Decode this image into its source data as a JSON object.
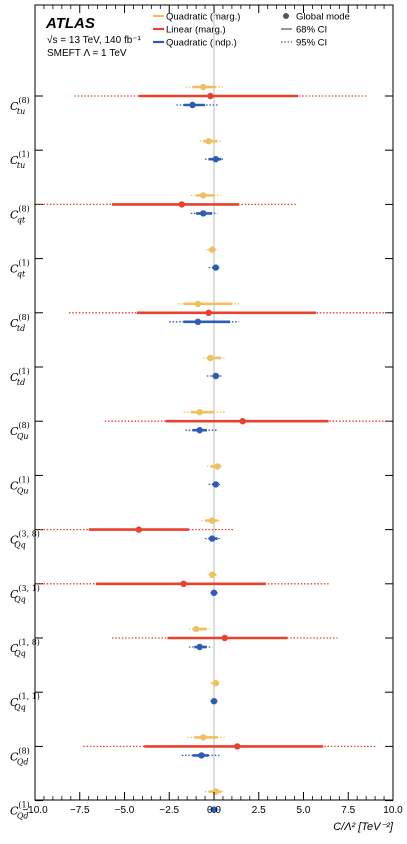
{
  "chart_data": {
    "type": "scatter",
    "annotation": {
      "experiment": "ATLAS",
      "energy_line": "√s = 13 TeV, 140 fb⁻¹",
      "model_line": "SMEFT Λ = 1 TeV"
    },
    "xlabel": "C/Λ² [TeV⁻²]",
    "xlim": [
      -10,
      10
    ],
    "xticks": [
      "−10.0",
      "−7.5",
      "−5.0",
      "−2.5",
      "0.0",
      "2.5",
      "5.0",
      "7.5",
      "10.0"
    ],
    "legend": [
      {
        "label": "Quadratic (marg.)",
        "color": "#f0c060",
        "kind": "line"
      },
      {
        "label": "Linear (marg.)",
        "color": "#e8412e",
        "kind": "line"
      },
      {
        "label": "Quadratic (indp.)",
        "color": "#2c5cb4",
        "kind": "line"
      },
      {
        "label": "Global mode",
        "color": "#555555",
        "kind": "dot"
      },
      {
        "label": "68% CI",
        "color": "#333333",
        "kind": "solid"
      },
      {
        "label": "95% CI",
        "color": "#333333",
        "kind": "dotted"
      }
    ],
    "categories": [
      {
        "base": "C",
        "sup": "(8)",
        "sub": "tu"
      },
      {
        "base": "C",
        "sup": "(1)",
        "sub": "tu"
      },
      {
        "base": "C",
        "sup": "(8)",
        "sub": "qt"
      },
      {
        "base": "C",
        "sup": "(1)",
        "sub": "qt"
      },
      {
        "base": "C",
        "sup": "(8)",
        "sub": "td"
      },
      {
        "base": "C",
        "sup": "(1)",
        "sub": "td"
      },
      {
        "base": "C",
        "sup": "(8)",
        "sub": "Qu"
      },
      {
        "base": "C",
        "sup": "(1)",
        "sub": "Qu"
      },
      {
        "base": "C",
        "sup": "(3, 8)",
        "sub": "Qq"
      },
      {
        "base": "C",
        "sup": "(3, 1)",
        "sub": "Qq"
      },
      {
        "base": "C",
        "sup": "(1, 8)",
        "sub": "Qq"
      },
      {
        "base": "C",
        "sup": "(1, 1)",
        "sub": "Qq"
      },
      {
        "base": "C",
        "sup": "(8)",
        "sub": "Qd"
      },
      {
        "base": "C",
        "sup": "(1)",
        "sub": "Qd"
      }
    ],
    "series": [
      {
        "name": "Quadratic (marg.)",
        "color": "#f0c060",
        "points": [
          {
            "mode": -0.6,
            "ci68": [
              -1.2,
              0.1
            ],
            "ci95": [
              -1.6,
              0.5
            ]
          },
          {
            "mode": -0.3,
            "ci68": [
              -0.6,
              0.2
            ],
            "ci95": [
              -0.8,
              0.4
            ]
          },
          {
            "mode": -0.6,
            "ci68": [
              -1.0,
              0.0
            ],
            "ci95": [
              -1.3,
              0.4
            ]
          },
          {
            "mode": -0.1,
            "ci68": [
              -0.3,
              0.1
            ],
            "ci95": [
              -0.4,
              0.2
            ]
          },
          {
            "mode": -0.9,
            "ci68": [
              -1.7,
              1.0
            ],
            "ci95": [
              -2.0,
              1.5
            ]
          },
          {
            "mode": -0.2,
            "ci68": [
              -0.4,
              0.4
            ],
            "ci95": [
              -0.6,
              0.6
            ]
          },
          {
            "mode": -0.8,
            "ci68": [
              -1.3,
              0.0
            ],
            "ci95": [
              -1.7,
              0.6
            ]
          },
          {
            "mode": 0.2,
            "ci68": [
              -0.2,
              0.3
            ],
            "ci95": [
              -0.4,
              0.5
            ]
          },
          {
            "mode": -0.1,
            "ci68": [
              -0.5,
              0.2
            ],
            "ci95": [
              -0.7,
              0.4
            ]
          },
          {
            "mode": -0.1,
            "ci68": [
              -0.2,
              0.1
            ],
            "ci95": [
              -0.3,
              0.2
            ]
          },
          {
            "mode": -1.0,
            "ci68": [
              -1.2,
              -0.4
            ],
            "ci95": [
              -1.4,
              -0.2
            ]
          },
          {
            "mode": 0.1,
            "ci68": [
              -0.1,
              0.2
            ],
            "ci95": [
              -0.2,
              0.3
            ]
          },
          {
            "mode": -0.6,
            "ci68": [
              -1.1,
              0.2
            ],
            "ci95": [
              -1.5,
              0.6
            ]
          },
          {
            "mode": 0.1,
            "ci68": [
              -0.3,
              0.4
            ],
            "ci95": [
              -0.5,
              0.6
            ]
          }
        ]
      },
      {
        "name": "Linear (marg.)",
        "color": "#e8412e",
        "points": [
          {
            "mode": -0.2,
            "ci68": [
              -4.2,
              4.7
            ],
            "ci95": [
              -7.8,
              8.6
            ]
          },
          null,
          {
            "mode": -1.8,
            "ci68": [
              -5.7,
              1.4
            ],
            "ci95": [
              -9.9,
              4.6
            ]
          },
          null,
          {
            "mode": -0.3,
            "ci68": [
              -4.3,
              5.7
            ],
            "ci95": [
              -8.1,
              9.7
            ]
          },
          null,
          {
            "mode": 1.6,
            "ci68": [
              -2.7,
              6.4
            ],
            "ci95": [
              -6.1,
              9.9
            ]
          },
          null,
          {
            "mode": -4.2,
            "ci68": [
              -7.0,
              -1.4
            ],
            "ci95": [
              -9.9,
              1.1
            ]
          },
          {
            "mode": -1.7,
            "ci68": [
              -6.6,
              2.9
            ],
            "ci95": [
              -9.9,
              6.4
            ]
          },
          {
            "mode": 0.6,
            "ci68": [
              -2.6,
              4.1
            ],
            "ci95": [
              -5.7,
              6.9
            ]
          },
          null,
          {
            "mode": 1.3,
            "ci68": [
              -3.9,
              6.1
            ],
            "ci95": [
              -7.3,
              9.1
            ]
          },
          null
        ]
      },
      {
        "name": "Quadratic (indp.)",
        "color": "#2c5cb4",
        "points": [
          {
            "mode": -1.2,
            "ci68": [
              -1.7,
              -0.5
            ],
            "ci95": [
              -2.1,
              0.3
            ]
          },
          {
            "mode": 0.1,
            "ci68": [
              -0.3,
              0.4
            ],
            "ci95": [
              -0.5,
              0.6
            ]
          },
          {
            "mode": -0.6,
            "ci68": [
              -1.0,
              -0.1
            ],
            "ci95": [
              -1.3,
              0.2
            ]
          },
          {
            "mode": 0.1,
            "ci68": [
              -0.1,
              0.2
            ],
            "ci95": [
              -0.3,
              0.3
            ]
          },
          {
            "mode": -0.9,
            "ci68": [
              -1.7,
              0.9
            ],
            "ci95": [
              -2.5,
              1.4
            ]
          },
          {
            "mode": 0.1,
            "ci68": [
              -0.1,
              0.3
            ],
            "ci95": [
              -0.4,
              0.5
            ]
          },
          {
            "mode": -0.8,
            "ci68": [
              -1.2,
              -0.4
            ],
            "ci95": [
              -1.6,
              0.2
            ]
          },
          {
            "mode": 0.1,
            "ci68": [
              -0.1,
              0.2
            ],
            "ci95": [
              -0.3,
              0.4
            ]
          },
          {
            "mode": -0.1,
            "ci68": [
              -0.3,
              0.2
            ],
            "ci95": [
              -0.5,
              0.4
            ]
          },
          {
            "mode": 0.0,
            "ci68": [
              -0.1,
              0.1
            ],
            "ci95": [
              -0.2,
              0.2
            ]
          },
          {
            "mode": -0.8,
            "ci68": [
              -1.1,
              -0.4
            ],
            "ci95": [
              -1.4,
              -0.1
            ]
          },
          {
            "mode": 0.0,
            "ci68": [
              -0.1,
              0.1
            ],
            "ci95": [
              -0.2,
              0.2
            ]
          },
          {
            "mode": -0.7,
            "ci68": [
              -1.2,
              -0.3
            ],
            "ci95": [
              -1.8,
              0.3
            ]
          },
          {
            "mode": 0.0,
            "ci68": [
              -0.2,
              0.2
            ],
            "ci95": [
              -0.3,
              0.3
            ]
          }
        ]
      }
    ]
  }
}
